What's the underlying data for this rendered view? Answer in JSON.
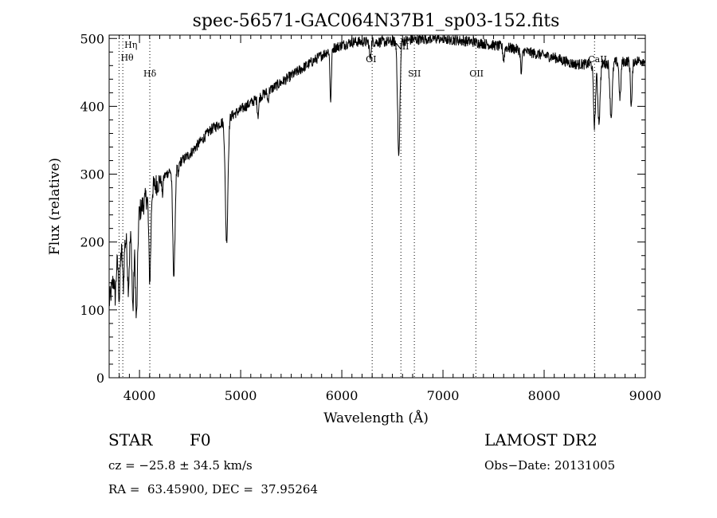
{
  "chart_data": {
    "type": "line",
    "title": "spec-56571-GAC064N37B1_sp03-152.fits",
    "xlabel": "Wavelength (Å)",
    "ylabel": "Flux (relative)",
    "xlim": [
      3700,
      9000
    ],
    "ylim": [
      0,
      505
    ],
    "x_ticks": [
      4000,
      5000,
      6000,
      7000,
      8000,
      9000
    ],
    "y_ticks": [
      0,
      100,
      200,
      300,
      400,
      500
    ],
    "grid": false,
    "line_color": "#000000",
    "line_markers": [
      {
        "label": "Hη",
        "x": 3835
      },
      {
        "label": "Hθ",
        "x": 3798
      },
      {
        "label": "Hδ",
        "x": 4102
      },
      {
        "label": "OI",
        "x": 6300
      },
      {
        "label": "NII",
        "x": 6584
      },
      {
        "label": "SII",
        "x": 6717
      },
      {
        "label": "OII",
        "x": 7325
      },
      {
        "label": "CaII",
        "x": 8498
      }
    ],
    "continuum": [
      [
        3700,
        110
      ],
      [
        3760,
        160
      ],
      [
        3850,
        200
      ],
      [
        3950,
        215
      ],
      [
        4000,
        245
      ],
      [
        4100,
        275
      ],
      [
        4200,
        290
      ],
      [
        4300,
        305
      ],
      [
        4500,
        330
      ],
      [
        4700,
        365
      ],
      [
        4900,
        385
      ],
      [
        5100,
        405
      ],
      [
        5300,
        425
      ],
      [
        5500,
        445
      ],
      [
        5700,
        465
      ],
      [
        5900,
        485
      ],
      [
        6100,
        495
      ],
      [
        6300,
        495
      ],
      [
        6500,
        495
      ],
      [
        6700,
        498
      ],
      [
        6900,
        500
      ],
      [
        7100,
        498
      ],
      [
        7300,
        495
      ],
      [
        7500,
        490
      ],
      [
        7700,
        485
      ],
      [
        7900,
        478
      ],
      [
        8100,
        472
      ],
      [
        8300,
        462
      ],
      [
        8500,
        462
      ],
      [
        8700,
        465
      ],
      [
        9000,
        468
      ]
    ],
    "absorption_lines": [
      {
        "x": 3760,
        "depth": 40,
        "width": 10
      },
      {
        "x": 3800,
        "depth": 60,
        "width": 10
      },
      {
        "x": 3840,
        "depth": 60,
        "width": 10
      },
      {
        "x": 3890,
        "depth": 70,
        "width": 12
      },
      {
        "x": 3935,
        "depth": 110,
        "width": 12
      },
      {
        "x": 3970,
        "depth": 140,
        "width": 14
      },
      {
        "x": 4102,
        "depth": 130,
        "width": 14
      },
      {
        "x": 4227,
        "depth": 25,
        "width": 8
      },
      {
        "x": 4340,
        "depth": 160,
        "width": 16
      },
      {
        "x": 4383,
        "depth": 20,
        "width": 8
      },
      {
        "x": 4861,
        "depth": 180,
        "width": 18
      },
      {
        "x": 5172,
        "depth": 25,
        "width": 10
      },
      {
        "x": 5270,
        "depth": 15,
        "width": 8
      },
      {
        "x": 5890,
        "depth": 75,
        "width": 10
      },
      {
        "x": 6280,
        "depth": 25,
        "width": 10
      },
      {
        "x": 6563,
        "depth": 170,
        "width": 16
      },
      {
        "x": 7600,
        "depth": 20,
        "width": 10
      },
      {
        "x": 7774,
        "depth": 35,
        "width": 10
      },
      {
        "x": 8498,
        "depth": 90,
        "width": 14
      },
      {
        "x": 8542,
        "depth": 85,
        "width": 16
      },
      {
        "x": 8662,
        "depth": 80,
        "width": 16
      },
      {
        "x": 8750,
        "depth": 55,
        "width": 12
      },
      {
        "x": 8862,
        "depth": 65,
        "width": 12
      }
    ],
    "noise_amplitude": 8
  },
  "info": {
    "object_type": "STAR",
    "subclass": "F0",
    "survey": "LAMOST DR2",
    "redshift": "cz = −25.8 ± 34.5 km/s",
    "obs_date": "Obs−Date: 20131005",
    "coords": "RA =  63.45900, DEC =  37.95264"
  }
}
